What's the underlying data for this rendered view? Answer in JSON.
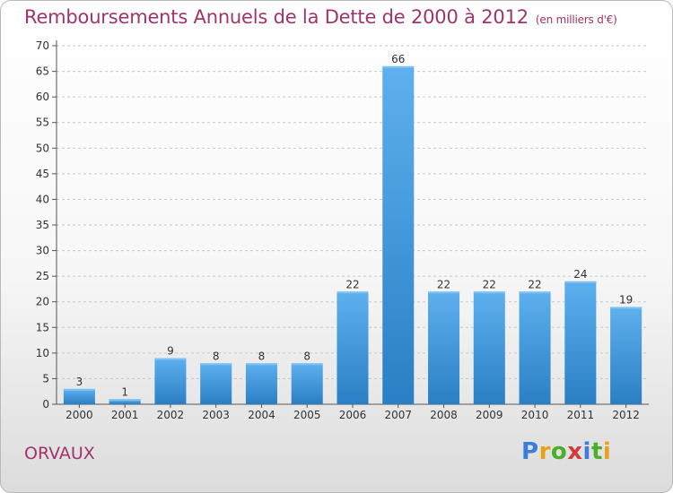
{
  "chart_data": {
    "type": "bar",
    "title": "Remboursements Annuels de la Dette de 2000 à 2012",
    "unit": "(en milliers d'€)",
    "categories": [
      "2000",
      "2001",
      "2002",
      "2003",
      "2004",
      "2005",
      "2006",
      "2007",
      "2008",
      "2009",
      "2010",
      "2011",
      "2012"
    ],
    "values": [
      3,
      1,
      9,
      8,
      8,
      8,
      22,
      66,
      22,
      22,
      22,
      24,
      19
    ],
    "ylim": [
      0,
      70
    ],
    "yticks": [
      0,
      5,
      10,
      15,
      20,
      25,
      30,
      35,
      40,
      45,
      50,
      55,
      60,
      65,
      70
    ],
    "grid": "horizontal-dashed",
    "bar_color": "#3a8fd6"
  },
  "place": "ORVAUX",
  "logo": {
    "letters": [
      "P",
      "r",
      "o",
      "x",
      "i",
      "t",
      "i"
    ],
    "colors": [
      "#3b7dd8",
      "#e8a21a",
      "#4caf2a",
      "#d43a3a",
      "#3b7dd8",
      "#4caf2a",
      "#e8a21a"
    ]
  }
}
